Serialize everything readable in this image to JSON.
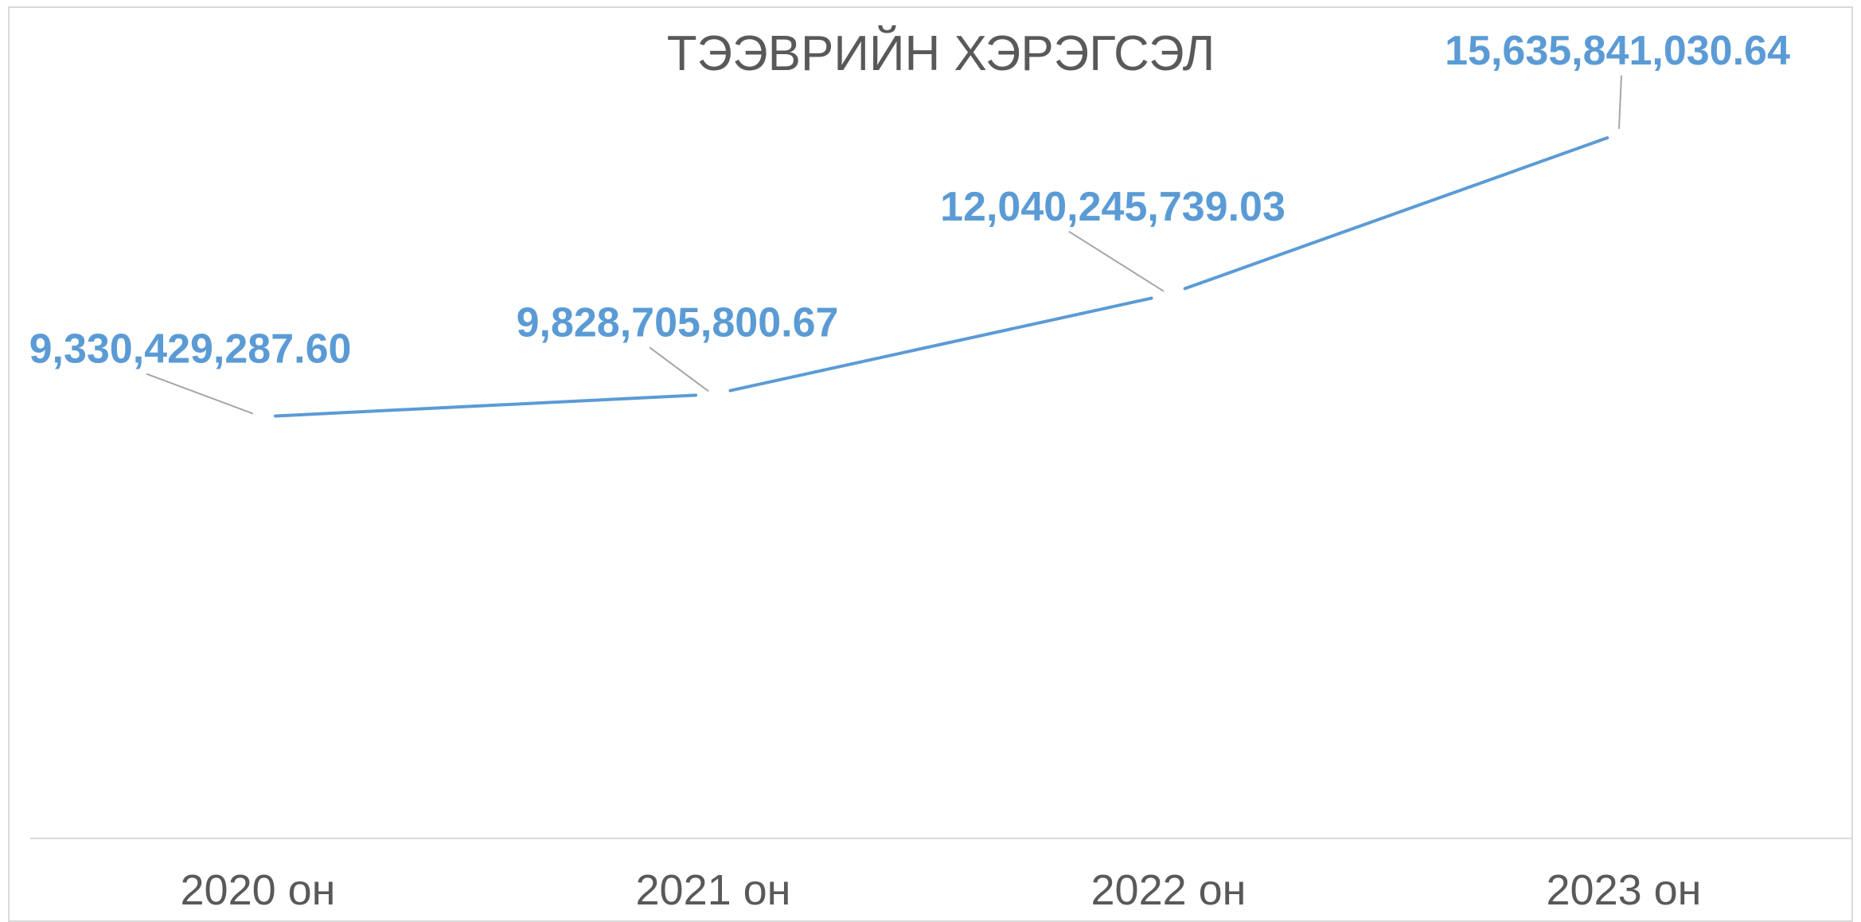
{
  "chart_data": {
    "type": "line",
    "title": "ТЭЭВРИЙН ХЭРЭГСЭЛ",
    "categories": [
      "2020 он",
      "2021 он",
      "2022 он",
      "2023 он"
    ],
    "series": [
      {
        "values": [
          9330429287.6,
          9828705800.67,
          12040245739.03,
          15635841030.64
        ],
        "labels": [
          "9,330,429,287.60",
          "9,828,705,800.67",
          "12,040,245,739.03",
          "15,635,841,030.64"
        ],
        "color": "#5b9bd5"
      }
    ],
    "ylim": [
      0,
      17500000000
    ],
    "grid": false,
    "legend": "none",
    "colors": {
      "line": "#5b9bd5",
      "title": "#595959",
      "axis": "#d9d9d9",
      "leader": "#a6a6a6"
    }
  }
}
